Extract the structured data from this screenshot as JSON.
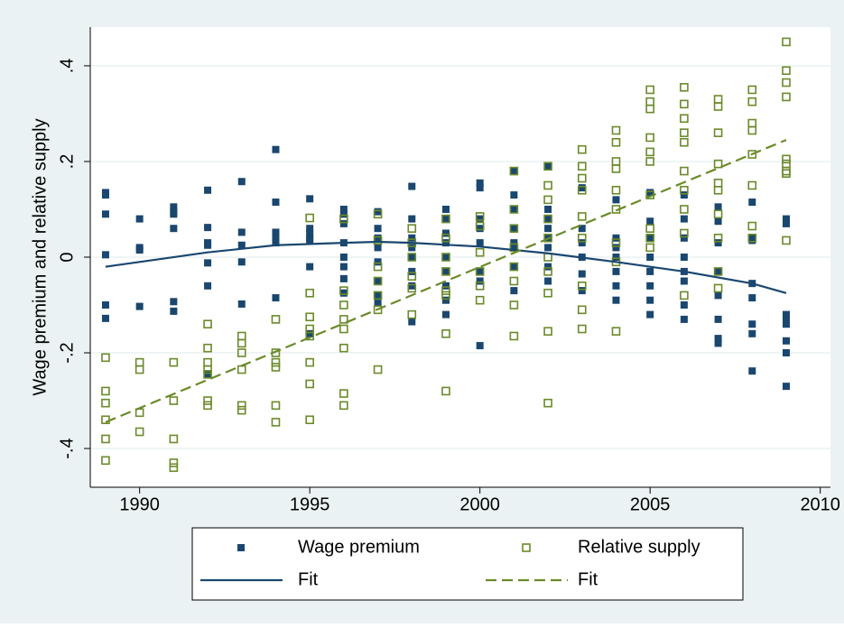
{
  "chart_data": {
    "type": "scatter",
    "y_label": "Wage premium and relative supply",
    "xlim": [
      1988.55,
      2010.3
    ],
    "ylim": [
      -0.481,
      0.481
    ],
    "xticks": [
      1990,
      1995,
      2000,
      2005,
      2010
    ],
    "yticks": [
      {
        "value": -0.4,
        "label": "-.4"
      },
      {
        "value": -0.2,
        "label": "-.2"
      },
      0,
      {
        "value": 0.2,
        "label": ".2"
      },
      {
        "value": 0.4,
        "label": ".4"
      }
    ],
    "grid": true,
    "legend": "bottom",
    "series": [
      {
        "name": "Wage premium",
        "type": "scatter",
        "marker": "square-filled",
        "color": "#1a476f",
        "x": [
          1989,
          1989,
          1989,
          1989,
          1989,
          1989,
          1990,
          1990,
          1990,
          1990,
          1991,
          1991,
          1991,
          1991,
          1991,
          1991,
          1992,
          1992,
          1992,
          1992,
          1992,
          1992,
          1992,
          1993,
          1993,
          1993,
          1993,
          1993,
          1994,
          1994,
          1994,
          1994,
          1994,
          1994,
          1995,
          1995,
          1995,
          1995,
          1995,
          1995,
          1995,
          1996,
          1996,
          1996,
          1996,
          1996,
          1996,
          1996,
          1996,
          1997,
          1997,
          1997,
          1997,
          1997,
          1997,
          1997,
          1997,
          1998,
          1998,
          1998,
          1998,
          1998,
          1998,
          1998,
          1998,
          1999,
          1999,
          1999,
          1999,
          1999,
          1999,
          1999,
          1999,
          1999,
          2000,
          2000,
          2000,
          2000,
          2000,
          2000,
          2000,
          2000,
          2001,
          2001,
          2001,
          2001,
          2001,
          2001,
          2001,
          2001,
          2002,
          2002,
          2002,
          2002,
          2002,
          2002,
          2002,
          2002,
          2003,
          2003,
          2003,
          2003,
          2003,
          2003,
          2004,
          2004,
          2004,
          2004,
          2004,
          2004,
          2004,
          2005,
          2005,
          2005,
          2005,
          2005,
          2005,
          2005,
          2005,
          2006,
          2006,
          2006,
          2006,
          2006,
          2006,
          2006,
          2006,
          2007,
          2007,
          2007,
          2007,
          2007,
          2007,
          2007,
          2007,
          2008,
          2008,
          2008,
          2008,
          2008,
          2008,
          2008,
          2008,
          2009,
          2009,
          2009,
          2009,
          2009,
          2009,
          2009,
          2009
        ],
        "values": [
          0.135,
          0.13,
          0.09,
          0.005,
          -0.1,
          -0.128,
          0.08,
          0.02,
          0.015,
          -0.103,
          0.105,
          0.095,
          0.09,
          0.06,
          -0.093,
          -0.113,
          0.14,
          0.062,
          0.03,
          0.025,
          -0.012,
          -0.06,
          -0.245,
          0.158,
          0.052,
          0.025,
          -0.01,
          -0.098,
          0.225,
          0.115,
          0.052,
          0.04,
          0.03,
          -0.085,
          0.122,
          0.06,
          0.05,
          0.04,
          0.035,
          -0.02,
          -0.16,
          0.1,
          0.09,
          0.07,
          0.03,
          0.0,
          -0.02,
          -0.045,
          -0.075,
          0.095,
          0.06,
          0.04,
          0.02,
          -0.01,
          -0.05,
          -0.08,
          -0.095,
          0.148,
          0.08,
          0.04,
          0.02,
          0.0,
          -0.03,
          -0.06,
          -0.135,
          0.1,
          0.08,
          0.05,
          0.03,
          0.0,
          -0.03,
          -0.06,
          -0.09,
          -0.12,
          0.155,
          0.145,
          0.08,
          0.06,
          0.03,
          -0.03,
          -0.05,
          -0.185,
          0.18,
          0.13,
          0.1,
          0.06,
          0.03,
          0.02,
          -0.02,
          -0.07,
          0.19,
          0.1,
          0.08,
          0.06,
          0.04,
          0.02,
          -0.02,
          -0.05,
          0.145,
          0.06,
          0.03,
          0.0,
          -0.035,
          -0.07,
          0.12,
          0.04,
          0.02,
          0.0,
          -0.03,
          -0.06,
          -0.09,
          0.135,
          0.075,
          0.04,
          0.0,
          -0.03,
          -0.06,
          -0.09,
          -0.12,
          0.13,
          0.08,
          0.04,
          0.0,
          -0.03,
          -0.05,
          -0.1,
          -0.13,
          0.105,
          0.075,
          0.03,
          -0.03,
          -0.08,
          -0.13,
          -0.17,
          -0.18,
          0.115,
          0.04,
          0.035,
          -0.055,
          -0.085,
          -0.14,
          -0.16,
          -0.238,
          0.08,
          0.07,
          -0.12,
          -0.13,
          -0.14,
          -0.175,
          -0.2,
          -0.27
        ]
      },
      {
        "name": "Relative supply",
        "type": "scatter",
        "marker": "square-hollow",
        "color": "#6b8a2a",
        "x": [
          1989,
          1989,
          1989,
          1989,
          1989,
          1989,
          1990,
          1990,
          1990,
          1990,
          1991,
          1991,
          1991,
          1991,
          1991,
          1992,
          1992,
          1992,
          1992,
          1992,
          1992,
          1992,
          1993,
          1993,
          1993,
          1993,
          1993,
          1993,
          1994,
          1994,
          1994,
          1994,
          1994,
          1994,
          1995,
          1995,
          1995,
          1995,
          1995,
          1995,
          1995,
          1995,
          1996,
          1996,
          1996,
          1996,
          1996,
          1996,
          1996,
          1996,
          1997,
          1997,
          1997,
          1997,
          1997,
          1997,
          1997,
          1998,
          1998,
          1998,
          1998,
          1998,
          1998,
          1999,
          1999,
          1999,
          1999,
          1999,
          1999,
          1999,
          1999,
          2000,
          2000,
          2000,
          2000,
          2000,
          2000,
          2001,
          2001,
          2001,
          2001,
          2001,
          2001,
          2001,
          2001,
          2002,
          2002,
          2002,
          2002,
          2002,
          2002,
          2002,
          2002,
          2002,
          2002,
          2003,
          2003,
          2003,
          2003,
          2003,
          2003,
          2003,
          2003,
          2003,
          2004,
          2004,
          2004,
          2004,
          2004,
          2004,
          2004,
          2004,
          2004,
          2005,
          2005,
          2005,
          2005,
          2005,
          2005,
          2005,
          2005,
          2005,
          2005,
          2006,
          2006,
          2006,
          2006,
          2006,
          2006,
          2006,
          2006,
          2006,
          2006,
          2007,
          2007,
          2007,
          2007,
          2007,
          2007,
          2007,
          2007,
          2007,
          2007,
          2008,
          2008,
          2008,
          2008,
          2008,
          2008,
          2008,
          2008,
          2009,
          2009,
          2009,
          2009,
          2009,
          2009,
          2009,
          2009,
          2009
        ],
        "values": [
          -0.21,
          -0.28,
          -0.305,
          -0.34,
          -0.38,
          -0.425,
          -0.22,
          -0.235,
          -0.325,
          -0.365,
          -0.22,
          -0.3,
          -0.38,
          -0.43,
          -0.44,
          -0.14,
          -0.19,
          -0.22,
          -0.235,
          -0.245,
          -0.3,
          -0.31,
          -0.165,
          -0.18,
          -0.2,
          -0.235,
          -0.31,
          -0.32,
          -0.13,
          -0.2,
          -0.22,
          -0.23,
          -0.31,
          -0.345,
          0.082,
          -0.075,
          -0.125,
          -0.15,
          -0.165,
          -0.22,
          -0.265,
          -0.34,
          0.08,
          -0.07,
          -0.1,
          -0.13,
          -0.15,
          -0.19,
          -0.285,
          -0.31,
          0.09,
          0.035,
          -0.02,
          -0.05,
          -0.08,
          -0.11,
          -0.235,
          0.06,
          0.03,
          0.0,
          -0.04,
          -0.065,
          -0.12,
          0.08,
          0.04,
          0.0,
          -0.03,
          -0.07,
          -0.08,
          -0.16,
          -0.28,
          0.085,
          0.065,
          0.01,
          -0.03,
          -0.06,
          -0.09,
          0.18,
          0.1,
          0.06,
          0.02,
          -0.02,
          -0.05,
          -0.1,
          -0.165,
          0.19,
          0.15,
          0.12,
          0.08,
          0.04,
          0.0,
          -0.03,
          -0.075,
          -0.155,
          -0.305,
          0.225,
          0.19,
          0.165,
          0.14,
          0.085,
          0.04,
          -0.06,
          -0.11,
          -0.15,
          0.265,
          0.24,
          0.2,
          0.185,
          0.14,
          0.1,
          0.03,
          -0.01,
          -0.155,
          0.35,
          0.325,
          0.31,
          0.25,
          0.22,
          0.2,
          0.13,
          0.06,
          0.04,
          0.02,
          0.355,
          0.32,
          0.29,
          0.26,
          0.24,
          0.18,
          0.14,
          0.1,
          0.05,
          -0.08,
          0.33,
          0.315,
          0.26,
          0.195,
          0.155,
          0.14,
          0.09,
          0.04,
          -0.03,
          -0.065,
          0.35,
          0.325,
          0.28,
          0.265,
          0.215,
          0.15,
          0.065,
          0.04,
          0.45,
          0.39,
          0.365,
          0.335,
          0.205,
          0.195,
          0.18,
          0.175,
          0.035
        ]
      },
      {
        "name": "Fit",
        "type": "line",
        "dash": false,
        "color": "#1a476f",
        "x": [
          1989,
          1990,
          1992,
          1994,
          1996,
          1997,
          1998,
          2000,
          2002,
          2004,
          2006,
          2008,
          2009
        ],
        "values": [
          -0.02,
          -0.01,
          0.01,
          0.025,
          0.03,
          0.032,
          0.03,
          0.022,
          0.008,
          -0.01,
          -0.03,
          -0.055,
          -0.075
        ]
      },
      {
        "name": "Fit",
        "type": "line",
        "dash": true,
        "color": "#6b8a2a",
        "x": [
          1989,
          2009
        ],
        "values": [
          -0.345,
          0.245
        ]
      }
    ]
  }
}
